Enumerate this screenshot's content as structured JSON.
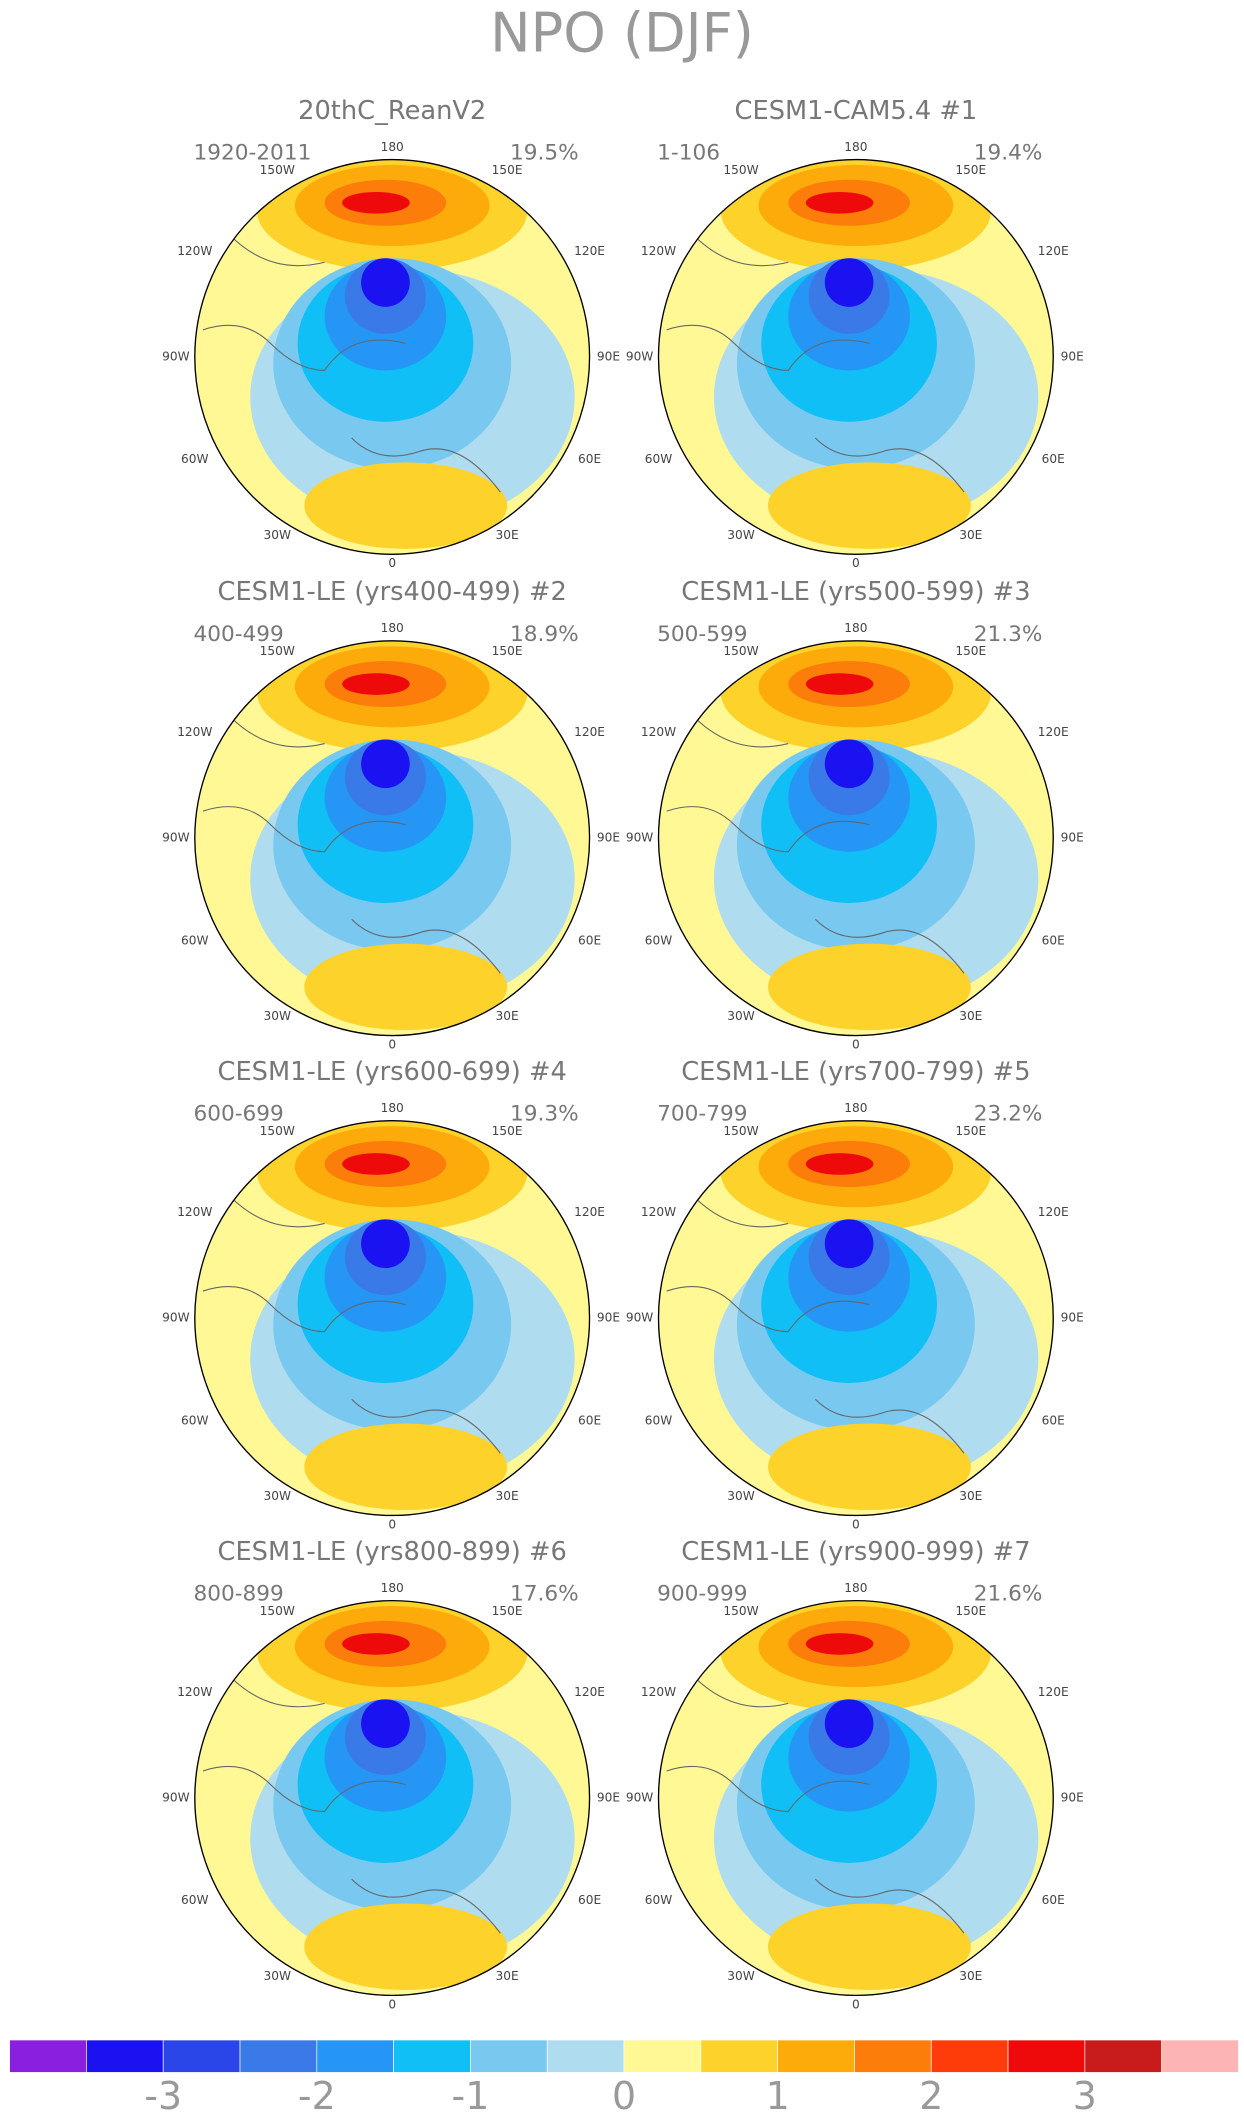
{
  "title": "NPO (DJF)",
  "longitude_labels": [
    "180",
    "150W",
    "150E",
    "120W",
    "120E",
    "90W",
    "90E",
    "60W",
    "60E",
    "30W",
    "30E",
    "0"
  ],
  "panels": [
    {
      "title": "20thC_ReanV2",
      "period": "1920-2011",
      "percent": "19.5%"
    },
    {
      "title": "CESM1-CAM5.4       #1",
      "period": "1-106",
      "percent": "19.4%"
    },
    {
      "title": "CESM1-LE (yrs400-499) #2",
      "period": "400-499",
      "percent": "18.9%"
    },
    {
      "title": "CESM1-LE (yrs500-599) #3",
      "period": "500-599",
      "percent": "21.3%"
    },
    {
      "title": "CESM1-LE (yrs600-699) #4",
      "period": "600-699",
      "percent": "19.3%"
    },
    {
      "title": "CESM1-LE (yrs700-799) #5",
      "period": "700-799",
      "percent": "23.2%"
    },
    {
      "title": "CESM1-LE (yrs800-899) #6",
      "period": "800-899",
      "percent": "17.6%"
    },
    {
      "title": "CESM1-LE (yrs900-999) #7",
      "period": "900-999",
      "percent": "21.6%"
    }
  ],
  "colorbar": {
    "lim": [
      -4,
      4
    ],
    "ticks": [
      -3,
      -2,
      -1,
      0,
      1,
      2,
      3
    ],
    "colors": [
      "#8a1fe0",
      "#1a12f0",
      "#2a45e8",
      "#3a7ae8",
      "#2596f5",
      "#10bff5",
      "#78c8f0",
      "#b0dcf0",
      "#fff894",
      "#fdd22b",
      "#fdab0a",
      "#fd7d0a",
      "#fd3c0a",
      "#ee0a0a",
      "#c81c1c",
      "#fcb4b4"
    ]
  }
}
